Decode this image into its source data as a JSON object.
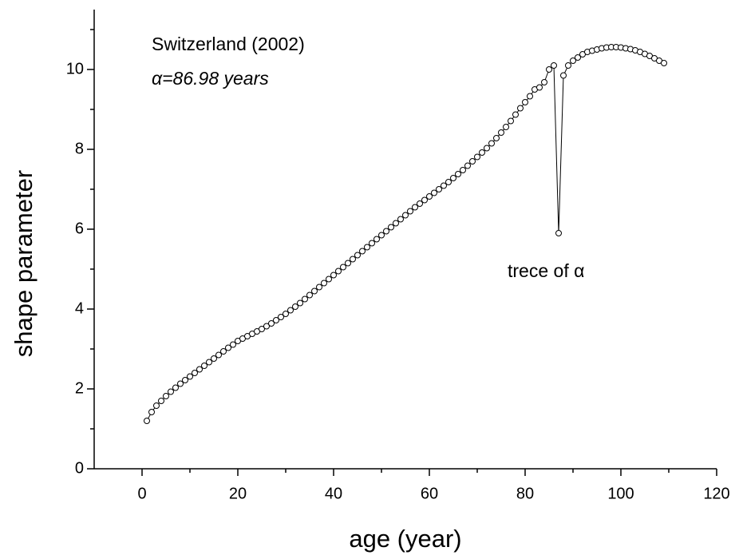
{
  "chart_data": {
    "type": "scatter-line",
    "annotations": [
      "Switzerland (2002)",
      "α=86.98 years",
      "trece of α"
    ],
    "x_label": "age (year)",
    "y_label": "shape parameter",
    "xlim": [
      -10,
      120
    ],
    "xticks": [
      0,
      20,
      40,
      60,
      80,
      100,
      120
    ],
    "xminorticks": [
      10,
      30,
      50,
      70,
      90,
      110
    ],
    "ylim": [
      0,
      11.5
    ],
    "yticks": [
      0,
      2,
      4,
      6,
      8,
      10
    ],
    "yminorticks": [
      1,
      3,
      5,
      7,
      9,
      11
    ],
    "color": "#000000",
    "marker_fill": "#ffffff",
    "x": [
      1,
      2,
      3,
      4,
      5,
      6,
      7,
      8,
      9,
      10,
      11,
      12,
      13,
      14,
      15,
      16,
      17,
      18,
      19,
      20,
      21,
      22,
      23,
      24,
      25,
      26,
      27,
      28,
      29,
      30,
      31,
      32,
      33,
      34,
      35,
      36,
      37,
      38,
      39,
      40,
      41,
      42,
      43,
      44,
      45,
      46,
      47,
      48,
      49,
      50,
      51,
      52,
      53,
      54,
      55,
      56,
      57,
      58,
      59,
      60,
      61,
      62,
      63,
      64,
      65,
      66,
      67,
      68,
      69,
      70,
      71,
      72,
      73,
      74,
      75,
      76,
      77,
      78,
      79,
      80,
      81,
      82,
      83,
      84,
      85,
      86,
      87,
      88,
      89,
      90,
      91,
      92,
      93,
      94,
      95,
      96,
      97,
      98,
      99,
      100,
      101,
      102,
      103,
      104,
      105,
      106,
      107,
      108,
      109
    ],
    "values": [
      1.2,
      1.42,
      1.58,
      1.7,
      1.82,
      1.93,
      2.03,
      2.13,
      2.22,
      2.31,
      2.4,
      2.49,
      2.58,
      2.67,
      2.76,
      2.85,
      2.94,
      3.03,
      3.11,
      3.2,
      3.26,
      3.32,
      3.38,
      3.44,
      3.5,
      3.57,
      3.64,
      3.72,
      3.8,
      3.88,
      3.97,
      4.06,
      4.15,
      4.25,
      4.35,
      4.45,
      4.55,
      4.65,
      4.75,
      4.85,
      4.95,
      5.05,
      5.15,
      5.25,
      5.35,
      5.45,
      5.55,
      5.65,
      5.75,
      5.85,
      5.95,
      6.05,
      6.15,
      6.25,
      6.35,
      6.45,
      6.55,
      6.64,
      6.73,
      6.82,
      6.91,
      7.0,
      7.09,
      7.18,
      7.28,
      7.38,
      7.48,
      7.59,
      7.7,
      7.81,
      7.92,
      8.03,
      8.15,
      8.28,
      8.42,
      8.56,
      8.71,
      8.87,
      9.03,
      9.18,
      9.33,
      9.5,
      9.55,
      9.68,
      10.0,
      10.1,
      5.9,
      9.85,
      10.1,
      10.22,
      10.3,
      10.38,
      10.44,
      10.47,
      10.5,
      10.53,
      10.55,
      10.56,
      10.56,
      10.55,
      10.53,
      10.51,
      10.48,
      10.44,
      10.39,
      10.34,
      10.28,
      10.22,
      10.16
    ]
  }
}
